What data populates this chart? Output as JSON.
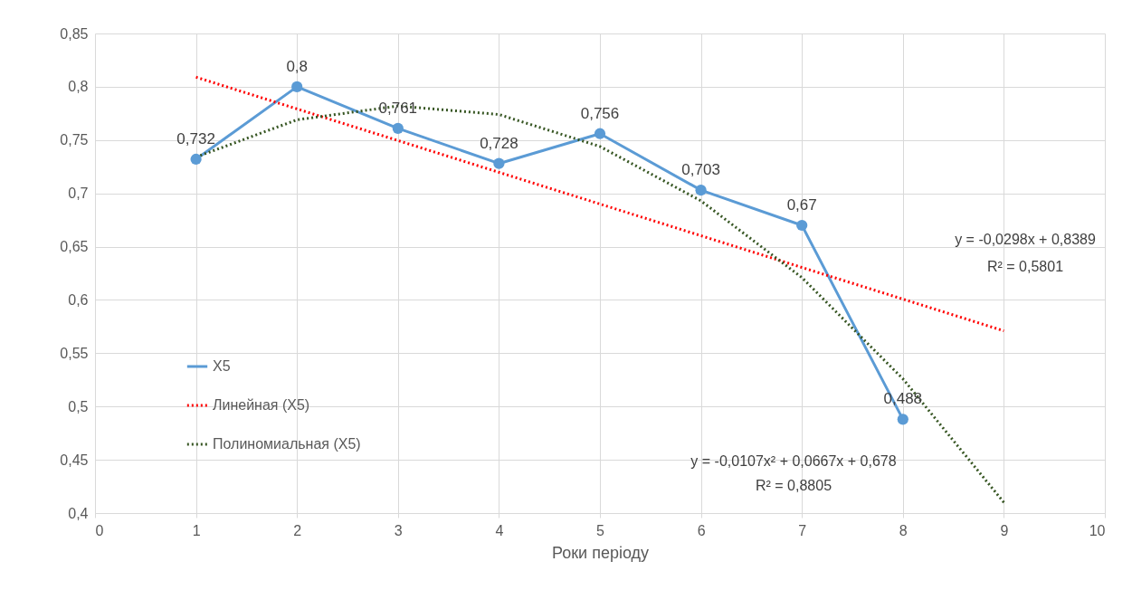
{
  "chart_data": {
    "type": "line",
    "xlabel": "Роки періоду",
    "xlim": [
      0,
      10
    ],
    "xticks": [
      0,
      1,
      2,
      3,
      4,
      5,
      6,
      7,
      8,
      9,
      10
    ],
    "ylim": [
      0.4,
      0.85
    ],
    "yticks": [
      {
        "value": 0.4,
        "label": "0,4"
      },
      {
        "value": 0.45,
        "label": "0,45"
      },
      {
        "value": 0.5,
        "label": "0,5"
      },
      {
        "value": 0.55,
        "label": "0,55"
      },
      {
        "value": 0.6,
        "label": "0,6"
      },
      {
        "value": 0.65,
        "label": "0,65"
      },
      {
        "value": 0.7,
        "label": "0,7"
      },
      {
        "value": 0.75,
        "label": "0,75"
      },
      {
        "value": 0.8,
        "label": "0,8"
      },
      {
        "value": 0.85,
        "label": "0,85"
      }
    ],
    "grid": true,
    "legend": "left",
    "series": [
      {
        "name": "X5",
        "color": "#5b9bd5",
        "marker": "circle",
        "x": [
          1,
          2,
          3,
          4,
          5,
          6,
          7,
          8
        ],
        "values": [
          0.732,
          0.8,
          0.761,
          0.728,
          0.756,
          0.703,
          0.67,
          0.488
        ],
        "value_labels": [
          "0,732",
          "0,8",
          "0,761",
          "0,728",
          "0,756",
          "0,703",
          "0,67",
          "0,488"
        ]
      },
      {
        "name": "Линейная (X5)",
        "color": "#ff0000",
        "line_style": "dotted",
        "x": [
          1,
          9
        ],
        "values": [
          0.809,
          0.571
        ]
      },
      {
        "name": "Полиномиальная (X5)",
        "color": "#375623",
        "line_style": "dotted",
        "x": [
          1,
          2,
          3,
          4,
          5,
          6,
          7,
          8,
          9
        ],
        "values": [
          0.734,
          0.769,
          0.782,
          0.774,
          0.744,
          0.693,
          0.621,
          0.526,
          0.41
        ]
      }
    ],
    "annotations": [
      "y = -0,0298x + 0,8389",
      "R² = 0,5801",
      "y = -0,0107x² + 0,0667x + 0,678",
      "R² = 0,8805"
    ]
  }
}
